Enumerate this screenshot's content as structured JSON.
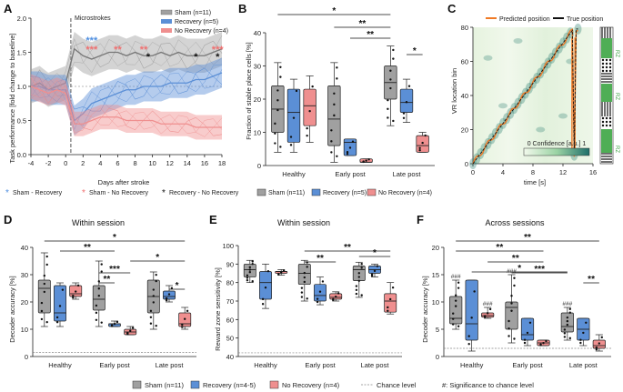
{
  "colors": {
    "sham": "#a0a0a0",
    "recovery": "#5b8fd6",
    "norecovery": "#ef8f8f",
    "chance": "#888888",
    "sig_blue": "#4f8fe0",
    "sig_red": "#f07070",
    "predicted": "#f07a25"
  },
  "panelA": {
    "label": "A",
    "annotation": "Microstrokes",
    "ylabel": "Task performance [fold change to baseline]",
    "xlabel": "Days after stroke",
    "legend": [
      "Sham (n=11)",
      "Recovery (n=5)",
      "No Recovery (n=4)"
    ],
    "chart_data": {
      "type": "line",
      "title": "",
      "xlabel": "Days after stroke",
      "ylabel": "Task performance [fold change to baseline]",
      "xlim": [
        -4,
        18
      ],
      "ylim": [
        0,
        2
      ],
      "x": [
        -4,
        -3,
        -2,
        -1,
        0,
        1,
        2,
        3,
        4,
        5,
        6,
        7,
        8,
        9,
        10,
        11,
        12,
        13,
        14,
        15,
        16,
        17,
        18
      ],
      "series": [
        {
          "name": "Sham (n=11)",
          "values": [
            1.0,
            1.05,
            0.95,
            1.0,
            1.05,
            1.55,
            1.45,
            1.4,
            1.45,
            1.5,
            1.5,
            1.45,
            1.5,
            1.45,
            1.45,
            1.5,
            1.45,
            1.5,
            1.45,
            1.45,
            1.45,
            1.5,
            1.55
          ]
        },
        {
          "name": "Recovery (n=5)",
          "values": [
            1.0,
            1.0,
            0.95,
            0.95,
            0.95,
            0.5,
            0.6,
            0.75,
            0.8,
            0.85,
            0.9,
            0.95,
            0.95,
            1.0,
            1.0,
            1.0,
            1.05,
            1.05,
            1.05,
            1.1,
            1.1,
            1.15,
            1.2
          ]
        },
        {
          "name": "No Recovery (n=4)",
          "values": [
            1.0,
            0.95,
            0.9,
            0.95,
            0.9,
            0.45,
            0.45,
            0.5,
            0.55,
            0.55,
            0.55,
            0.5,
            0.5,
            0.5,
            0.5,
            0.45,
            0.45,
            0.45,
            0.45,
            0.4,
            0.4,
            0.4,
            0.4
          ]
        }
      ]
    },
    "ticks_x": [
      "-4",
      "-2",
      "0",
      "2",
      "4",
      "6",
      "8",
      "10",
      "12",
      "14",
      "16",
      "18"
    ],
    "ticks_y": [
      "0.0",
      "0.5",
      "1.0",
      "1.5",
      "2.0"
    ],
    "sig_rows": [
      {
        "text": "***",
        "color": "blue",
        "x": 3
      },
      {
        "text": "***",
        "color": "red",
        "x": 3
      },
      {
        "text": "**",
        "color": "red",
        "x": 6
      },
      {
        "text": "**",
        "color": "red",
        "x": 9
      },
      {
        "text": "*",
        "color": "black",
        "x": 9.5
      },
      {
        "text": "*",
        "color": "black",
        "x": 15
      },
      {
        "text": "***",
        "color": "red",
        "x": 17.5
      },
      {
        "text": "*",
        "color": "black",
        "x": 17.5
      }
    ],
    "sig_legend": [
      "Sham - Recovery",
      "Sham - No Recovery",
      "Recovery - No Recovery"
    ]
  },
  "panelB": {
    "label": "B",
    "ylabel": "Fraction of stable place cells [%]",
    "ticks_y": [
      "0",
      "10",
      "20",
      "30",
      "40"
    ],
    "groups": [
      "Healthy",
      "Early post",
      "Late post"
    ],
    "legend": [
      "Sham (n=11)",
      "Recovery (n=5)",
      "No Recovery (n=4)"
    ],
    "chart_data": {
      "type": "box",
      "ylim": [
        0,
        40
      ],
      "categories": [
        "Healthy",
        "Early post",
        "Late post"
      ],
      "series": [
        {
          "name": "Sham (n=11)",
          "boxes": [
            [
              4,
              10,
              17,
              24,
              31
            ],
            [
              1,
              6,
              14,
              24,
              31
            ],
            [
              12,
              20,
              25,
              30,
              36
            ]
          ]
        },
        {
          "name": "Recovery (n=5)",
          "boxes": [
            [
              4,
              7,
              16,
              23,
              26
            ],
            [
              3,
              3,
              7,
              8,
              8
            ],
            [
              13,
              16,
              19,
              23,
              26
            ]
          ]
        },
        {
          "name": "No Recovery (n=4)",
          "boxes": [
            [
              7,
              12,
              18,
              23,
              27
            ],
            [
              1,
              1,
              1,
              2,
              2
            ],
            [
              4,
              4,
              6,
              9,
              10
            ]
          ]
        }
      ]
    },
    "sig": [
      "*",
      "**",
      "**",
      "*"
    ]
  },
  "panelC": {
    "label": "C",
    "ylabel": "VR location bin",
    "xlabel": "time [s]",
    "legend": [
      "Predicted position",
      "True position"
    ],
    "cbar_label": "0 Confidence [a.u.] 1",
    "ticks_x": [
      "0",
      "4",
      "8",
      "12",
      "16"
    ],
    "ticks_y": [
      "0",
      "20",
      "40",
      "60",
      "80"
    ],
    "zones": [
      "RZ",
      "RZ",
      "RZ"
    ]
  },
  "panelD": {
    "label": "D",
    "title": "Within session",
    "ylabel": "Decoder accuracy [%]",
    "ticks_y": [
      "0",
      "10",
      "20",
      "30",
      "40"
    ],
    "groups": [
      "Healthy",
      "Early post",
      "Late post"
    ],
    "chart_data": {
      "type": "box",
      "ylim": [
        0,
        40
      ],
      "categories": [
        "Healthy",
        "Early post",
        "Late post"
      ],
      "series": [
        {
          "name": "Sham (n=11)",
          "boxes": [
            [
              11,
              16,
              25,
              28,
              38
            ],
            [
              11,
              17,
              21,
              26,
              35
            ],
            [
              10,
              16,
              22,
              28,
              31
            ]
          ]
        },
        {
          "name": "Recovery (n=4-5)",
          "boxes": [
            [
              11,
              13,
              16,
              26,
              27
            ],
            [
              11,
              11,
              12,
              12,
              13
            ],
            [
              20,
              21,
              22,
              24,
              26
            ]
          ]
        },
        {
          "name": "No Recovery (n=4)",
          "boxes": [
            [
              21,
              22,
              23,
              26,
              27
            ],
            [
              8,
              8,
              9,
              10,
              11
            ],
            [
              10,
              11,
              12,
              16,
              18
            ]
          ]
        }
      ]
    },
    "sig": [
      "*",
      "**",
      "*",
      "***",
      "**",
      "*"
    ]
  },
  "panelE": {
    "label": "E",
    "title": "Within session",
    "ylabel": "Reward zone sensitivity [%]",
    "ticks_y": [
      "40",
      "50",
      "60",
      "70",
      "80",
      "90",
      "100"
    ],
    "groups": [
      "Healthy",
      "Early post",
      "Late post"
    ],
    "chart_data": {
      "type": "box",
      "ylim": [
        40,
        100
      ],
      "categories": [
        "Healthy",
        "Early post",
        "Late post"
      ],
      "series": [
        {
          "name": "Sham (n=11)",
          "boxes": [
            [
              80,
              83,
              87,
              90,
              92
            ],
            [
              70,
              79,
              85,
              90,
              92
            ],
            [
              72,
              81,
              87,
              89,
              91
            ]
          ]
        },
        {
          "name": "Recovery (n=4-5)",
          "boxes": [
            [
              66,
              71,
              80,
              86,
              90
            ],
            [
              68,
              70,
              73,
              79,
              83
            ],
            [
              83,
              85,
              87,
              89,
              90
            ]
          ]
        },
        {
          "name": "No Recovery (n=4)",
          "boxes": [
            [
              84,
              85,
              86,
              86,
              87
            ],
            [
              70,
              71,
              72,
              74,
              75
            ],
            [
              63,
              64,
              70,
              74,
              80
            ]
          ]
        }
      ]
    },
    "sig": [
      "**",
      "**",
      "*"
    ]
  },
  "panelF": {
    "label": "F",
    "title": "Across sessions",
    "ylabel": "Decoder accuracy [%]",
    "ticks_y": [
      "0",
      "5",
      "10",
      "15",
      "20"
    ],
    "groups": [
      "Healthy",
      "Early post",
      "Late post"
    ],
    "chart_data": {
      "type": "box",
      "ylim": [
        0,
        20
      ],
      "categories": [
        "Healthy",
        "Early post",
        "Late post"
      ],
      "series": [
        {
          "name": "Sham (n=11)",
          "boxes": [
            [
              5,
              6,
              7,
              11,
              14
            ],
            [
              2.5,
              5,
              9,
              10,
              15
            ],
            [
              3,
              4.5,
              5.5,
              8,
              9
            ]
          ]
        },
        {
          "name": "Recovery (n=4-5)",
          "boxes": [
            [
              1,
              3,
              6,
              14,
              14
            ],
            [
              2,
              3,
              4,
              7,
              7
            ],
            [
              2,
              3,
              5,
              7,
              7
            ]
          ]
        },
        {
          "name": "No Recovery (n=4)",
          "boxes": [
            [
              7,
              7.2,
              7.5,
              8,
              9
            ],
            [
              2,
              2,
              2.5,
              3,
              3
            ],
            [
              1,
              1.5,
              2,
              3,
              4
            ]
          ]
        }
      ]
    },
    "hash": [
      "###",
      "###",
      "###",
      "###"
    ],
    "sig": [
      "**",
      "**",
      "**",
      "*",
      "***",
      "**"
    ]
  },
  "bottom_legend": [
    "Sham (n=11)",
    "Recovery (n=4-5)",
    "No Recovery (n=4)",
    "Chance level",
    "#: Significance to chance level"
  ]
}
